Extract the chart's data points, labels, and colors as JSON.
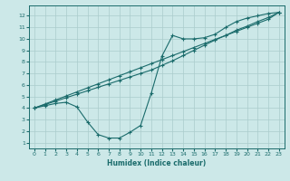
{
  "xlabel": "Humidex (Indice chaleur)",
  "background_color": "#cce8e8",
  "grid_color": "#aacccc",
  "line_color": "#1a6b6b",
  "xlim": [
    -0.5,
    23.5
  ],
  "ylim": [
    0.5,
    12.9
  ],
  "xticks": [
    0,
    1,
    2,
    3,
    4,
    5,
    6,
    7,
    8,
    9,
    10,
    11,
    12,
    13,
    14,
    15,
    16,
    17,
    18,
    19,
    20,
    21,
    22,
    23
  ],
  "yticks": [
    1,
    2,
    3,
    4,
    5,
    6,
    7,
    8,
    9,
    10,
    11,
    12
  ],
  "line1_x": [
    0,
    1,
    2,
    3,
    4,
    5,
    6,
    7,
    8,
    9,
    10,
    11,
    12,
    13,
    14,
    15,
    16,
    17,
    18,
    19,
    20,
    21,
    22,
    23
  ],
  "line1_y": [
    4.0,
    4.2,
    4.4,
    4.5,
    4.1,
    2.8,
    1.7,
    1.4,
    1.4,
    1.9,
    2.5,
    5.3,
    8.5,
    10.3,
    10.0,
    10.0,
    10.1,
    10.4,
    11.0,
    11.5,
    11.8,
    12.0,
    12.2,
    12.3
  ],
  "line2_x": [
    0,
    1,
    2,
    3,
    4,
    5,
    6,
    7,
    8,
    9,
    10,
    11,
    12,
    13,
    14,
    15,
    16,
    17,
    18,
    19,
    20,
    21,
    22,
    23
  ],
  "line2_y": [
    4.0,
    4.35,
    4.7,
    5.05,
    5.4,
    5.75,
    6.1,
    6.45,
    6.8,
    7.15,
    7.5,
    7.85,
    8.2,
    8.55,
    8.9,
    9.25,
    9.6,
    9.95,
    10.3,
    10.65,
    11.0,
    11.35,
    11.7,
    12.3
  ],
  "line3_x": [
    0,
    1,
    2,
    3,
    4,
    5,
    6,
    7,
    8,
    9,
    10,
    11,
    12,
    13,
    14,
    15,
    16,
    17,
    18,
    19,
    20,
    21,
    22,
    23
  ],
  "line3_y": [
    4.0,
    4.3,
    4.6,
    4.9,
    5.2,
    5.5,
    5.8,
    6.1,
    6.4,
    6.7,
    7.0,
    7.3,
    7.7,
    8.1,
    8.55,
    9.0,
    9.45,
    9.9,
    10.3,
    10.75,
    11.1,
    11.5,
    11.85,
    12.3
  ]
}
